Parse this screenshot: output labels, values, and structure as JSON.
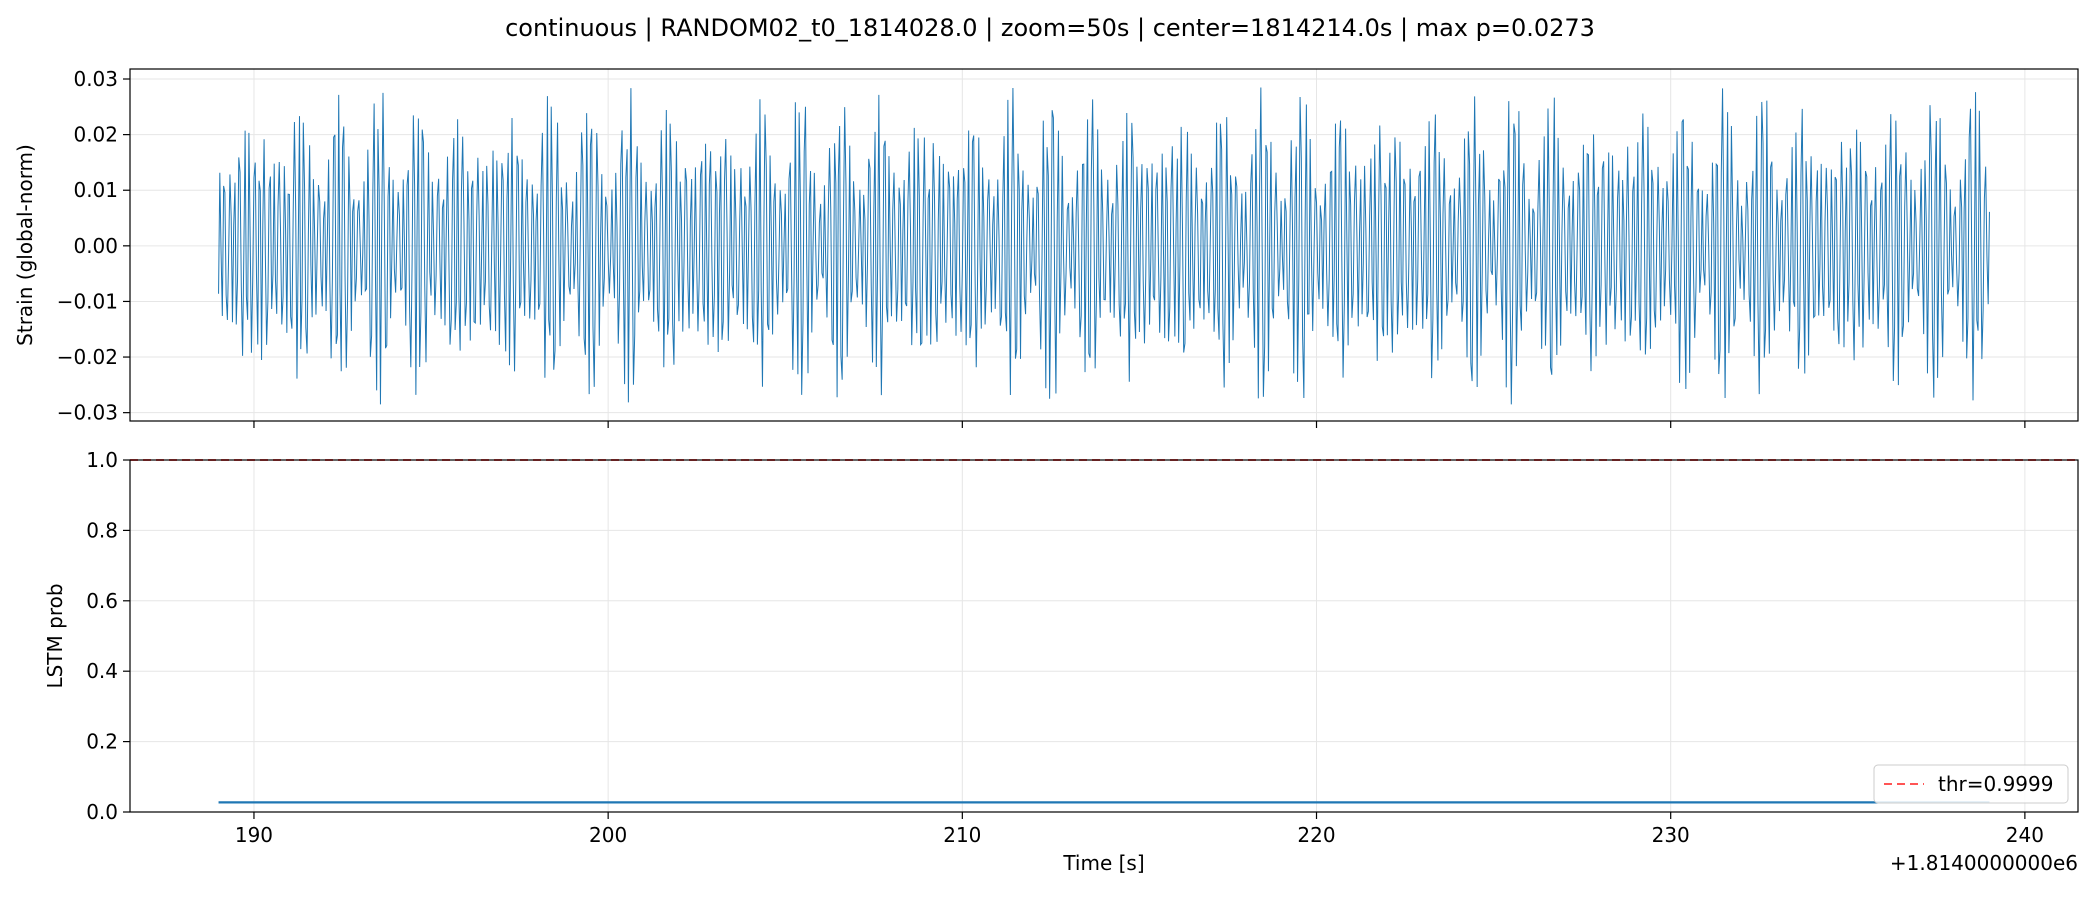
{
  "figure": {
    "title": "continuous | RANDOM02_t0_1814028.0 | zoom=50s | center=1814214.0s | max p=0.0273"
  },
  "chart_data": [
    {
      "id": "strain",
      "type": "line",
      "title": "",
      "xlabel": "",
      "ylabel": "Strain (global-norm)",
      "xlim": [
        186.5,
        241.5
      ],
      "ylim": [
        -0.0315,
        0.0318
      ],
      "x_offset_label": "",
      "xticks": [
        190,
        200,
        210,
        220,
        230,
        240
      ],
      "xtick_labels_visible": false,
      "yticks": [
        -0.03,
        -0.02,
        -0.01,
        0.0,
        0.01,
        0.02,
        0.03
      ],
      "ytick_labels": [
        "−0.03",
        "−0.02",
        "−0.01",
        "0.00",
        "0.01",
        "0.02",
        "0.03"
      ],
      "grid": true,
      "series": [
        {
          "color": "#1f77b4",
          "signal": {
            "x_start": 189.0,
            "x_end": 239.0,
            "amplitude_max": 0.03,
            "amplitude_min": -0.0285,
            "dominant_period_s": 0.14,
            "envelope_period_s": 1.0
          }
        }
      ]
    },
    {
      "id": "prob",
      "type": "line",
      "title": "",
      "xlabel": "Time [s]",
      "ylabel": "LSTM prob",
      "xlim": [
        186.5,
        241.5
      ],
      "ylim": [
        0.0,
        1.0
      ],
      "x_offset_label": "+1.8140000000e6",
      "xticks": [
        190,
        200,
        210,
        220,
        230,
        240
      ],
      "xtick_labels": [
        "190",
        "200",
        "210",
        "220",
        "230",
        "240"
      ],
      "yticks": [
        0.0,
        0.2,
        0.4,
        0.6,
        0.8,
        1.0
      ],
      "ytick_labels": [
        "0.0",
        "0.2",
        "0.4",
        "0.6",
        "0.8",
        "1.0"
      ],
      "grid": true,
      "legend": {
        "placement": "lower-right",
        "entries": [
          "thr=0.9999"
        ]
      },
      "threshold": {
        "name": "thr=0.9999",
        "value": 0.9999,
        "color": "#ff5555",
        "style": "dashed"
      },
      "series": [
        {
          "color": "#1f77b4",
          "x": [
            189.0,
            239.0
          ],
          "y": [
            0.0273,
            0.0273
          ]
        }
      ]
    }
  ]
}
